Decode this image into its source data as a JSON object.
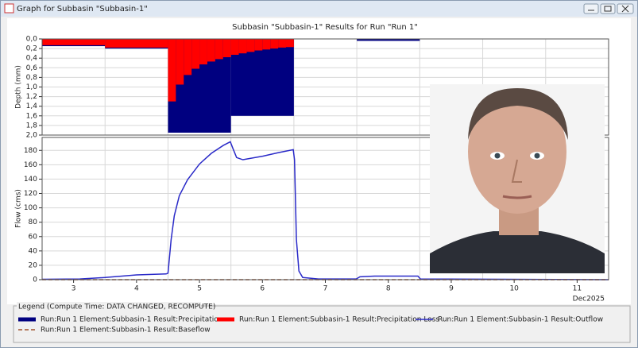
{
  "window_title": "Graph for Subbasin \"Subbasin-1\"",
  "legend_title": "Legend (Compute Time: DATA CHANGED, RECOMPUTE)",
  "chart_data": [
    {
      "type": "step-bar",
      "title": "Subbasin \"Subbasin-1\" Results for Run \"Run 1\"",
      "y_label": "Depth (mm)",
      "xlim": [
        2.5,
        11.5
      ],
      "ylim": [
        0,
        2
      ],
      "y_inverted": true,
      "grid": true,
      "yticks": [
        {
          "value": 0,
          "label": "0,0"
        },
        {
          "value": 0.2,
          "label": "0,2"
        },
        {
          "value": 0.4,
          "label": "0,4"
        },
        {
          "value": 0.6,
          "label": "0,6"
        },
        {
          "value": 0.8,
          "label": "0,8"
        },
        {
          "value": 1.0,
          "label": "1,0"
        },
        {
          "value": 1.2,
          "label": "1,2"
        },
        {
          "value": 1.4,
          "label": "1,4"
        },
        {
          "value": 1.6,
          "label": "1,6"
        },
        {
          "value": 1.8,
          "label": "1,8"
        },
        {
          "value": 2.0,
          "label": "2,0"
        }
      ],
      "series": [
        {
          "name": "Run:Run 1 Element:Subbasin-1 Result:Precipitation",
          "color": "#000080",
          "bins": [
            2.5,
            3.5,
            4.5,
            5.5,
            6.5,
            7.5,
            8.5,
            9.5,
            10.5,
            11.5
          ],
          "values": [
            0.15,
            0.2,
            1.95,
            1.6,
            0,
            0.04,
            0,
            0,
            0
          ]
        },
        {
          "name": "Run:Run 1 Element:Subbasin-1 Result:Precipitation Loss",
          "color": "#ff0000",
          "bins": [
            2.5,
            3.5,
            4.5,
            4.625,
            4.75,
            4.875,
            5.0,
            5.125,
            5.25,
            5.375,
            5.5,
            5.625,
            5.75,
            5.875,
            6.0,
            6.125,
            6.25,
            6.375,
            6.5,
            11.5
          ],
          "values": [
            0.13,
            0.18,
            1.3,
            0.95,
            0.75,
            0.62,
            0.53,
            0.47,
            0.42,
            0.38,
            0.33,
            0.3,
            0.27,
            0.24,
            0.22,
            0.2,
            0.18,
            0.17,
            0
          ]
        }
      ]
    },
    {
      "type": "line",
      "y_label": "Flow (cms)",
      "x_label": "Dec2025",
      "xlim": [
        2.5,
        11.5
      ],
      "xticks": [
        3,
        4,
        5,
        6,
        7,
        8,
        9,
        10,
        11
      ],
      "ylim": [
        0,
        198
      ],
      "yticks": [
        0,
        20,
        40,
        60,
        80,
        100,
        120,
        140,
        160,
        180
      ],
      "grid": true,
      "series": [
        {
          "name": "Run:Run 1 Element:Subbasin-1 Result:Outflow",
          "color": "#2a2ac8",
          "dash": false,
          "x": [
            2.5,
            3.1,
            3.5,
            4.0,
            4.47,
            4.5,
            4.55,
            4.6,
            4.68,
            4.81,
            5.0,
            5.19,
            5.38,
            5.49,
            5.53,
            5.59,
            5.69,
            6.01,
            6.26,
            6.49,
            6.51,
            6.54,
            6.58,
            6.64,
            6.89,
            7.49,
            7.55,
            7.78,
            8.47,
            8.51,
            11.5
          ],
          "values": [
            0.5,
            1,
            3,
            6.6,
            8,
            9,
            56,
            89,
            117,
            139,
            161,
            176,
            187,
            192,
            183,
            170,
            167,
            172,
            177,
            181,
            167,
            56,
            12,
            3,
            1,
            1,
            4,
            5,
            5,
            1,
            0
          ]
        },
        {
          "name": "Run:Run 1 Element:Subbasin-1 Result:Baseflow",
          "color": "#a0522d",
          "dash": true,
          "x": [
            2.5,
            11.5
          ],
          "values": [
            0,
            0
          ]
        }
      ]
    }
  ]
}
